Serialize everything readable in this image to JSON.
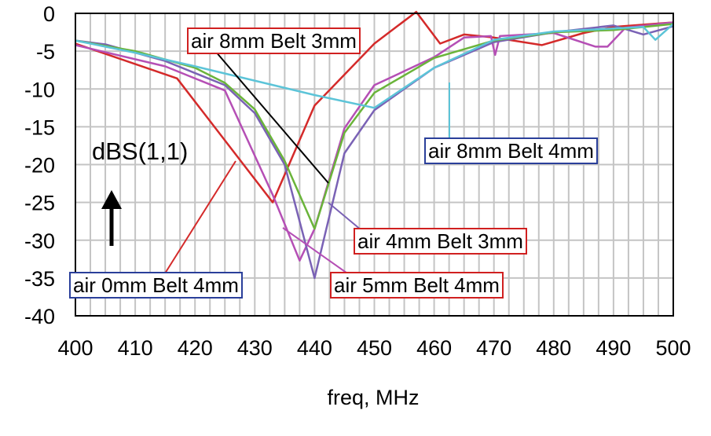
{
  "chart_data": {
    "type": "line",
    "xlabel": "freq, MHz",
    "ylabel": "dBS(1,1)",
    "xlim": [
      400,
      500
    ],
    "ylim": [
      -40,
      0
    ],
    "xticks": [
      "400",
      "410",
      "420",
      "430",
      "440",
      "450",
      "460",
      "470",
      "480",
      "490",
      "500"
    ],
    "yticks": [
      "0",
      "-5",
      "-10",
      "-15",
      "-20",
      "-25",
      "-30",
      "-35",
      "-40"
    ],
    "grid": true,
    "series": [
      {
        "name": "air 0mm Belt 4mm",
        "color": "#d42a2a",
        "x": [
          400,
          417,
          433,
          440,
          450,
          457,
          461,
          465,
          470,
          478,
          485,
          490,
          500
        ],
        "y": [
          -4,
          -8.6,
          -25,
          -12.2,
          -4,
          0.2,
          -4,
          -2.8,
          -3.2,
          -4.2,
          -2.6,
          -1.8,
          -1.2
        ]
      },
      {
        "name": "air 5mm Belt 4mm",
        "color": "#b54fb5",
        "x": [
          400,
          415,
          425,
          433,
          437.5,
          440,
          445,
          450,
          460,
          465,
          469.5,
          470.2,
          471,
          480,
          487,
          489,
          492,
          500
        ],
        "y": [
          -4.2,
          -7,
          -10.2,
          -24,
          -32.7,
          -28.5,
          -15.2,
          -9.5,
          -5.8,
          -3.2,
          -3,
          -5.5,
          -3,
          -2.6,
          -4.4,
          -4.4,
          -1.9,
          -1.2
        ]
      },
      {
        "name": "air 4mm Belt 3mm",
        "color": "#7a62b5",
        "x": [
          400,
          405,
          415,
          425,
          430,
          435,
          440,
          445,
          450,
          460,
          470,
          480,
          490,
          495,
          500
        ],
        "y": [
          -3.6,
          -4.1,
          -6.3,
          -9.5,
          -13.2,
          -20,
          -35,
          -18.5,
          -12.8,
          -7.2,
          -3.8,
          -2.5,
          -1.6,
          -2.8,
          -1.7
        ]
      },
      {
        "name": "air 8mm Belt 3mm",
        "color": "#6ab43a",
        "x": [
          400,
          410,
          420,
          425,
          430,
          435,
          440,
          445,
          450,
          460,
          470,
          480,
          490,
          500
        ],
        "y": [
          -3.6,
          -5,
          -7.2,
          -9.2,
          -12.7,
          -19.5,
          -28.5,
          -15.8,
          -10.5,
          -5.9,
          -3.6,
          -2.5,
          -2.2,
          -1.4
        ]
      },
      {
        "name": "air 8mm Belt 4mm",
        "color": "#5cc4d8",
        "x": [
          400,
          410,
          420,
          440,
          450,
          460,
          470,
          480,
          485,
          490,
          495,
          497,
          500
        ],
        "y": [
          -3.6,
          -5.2,
          -7,
          -10.8,
          -12.5,
          -7.2,
          -3.5,
          -2.4,
          -2.2,
          -2,
          -1.8,
          -3.5,
          -1.4
        ]
      }
    ],
    "annotations": [
      {
        "text": "dBS(1,1)"
      },
      {
        "text": "air 8mm Belt 3mm",
        "box_color": "#d02020"
      },
      {
        "text": "air 8mm Belt 4mm",
        "box_color": "#2a3f9a"
      },
      {
        "text": "air 4mm Belt 3mm",
        "box_color": "#d02020"
      },
      {
        "text": "air 0mm Belt 4mm",
        "box_color": "#2a3f9a"
      },
      {
        "text": "air 5mm Belt 4mm",
        "box_color": "#d02020"
      }
    ]
  }
}
